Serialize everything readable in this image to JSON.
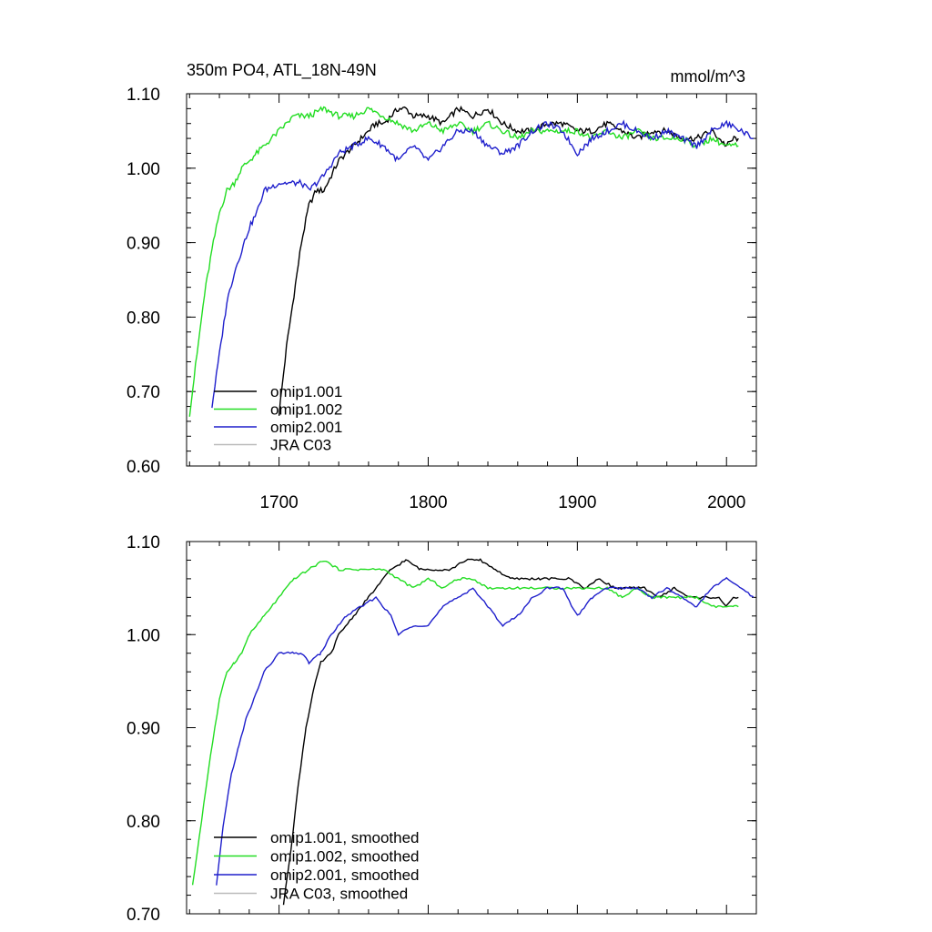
{
  "chart_data": [
    {
      "type": "line",
      "title": "350m PO4, ATL_18N-49N",
      "units": "mmol/m^3",
      "xlabel": "",
      "ylabel": "",
      "xlim": [
        1638,
        2020
      ],
      "ylim": [
        0.6,
        1.1
      ],
      "xticks": [
        1700,
        1800,
        1900,
        2000
      ],
      "yticks": [
        0.6,
        0.7,
        0.8,
        0.9,
        1.0,
        1.1
      ],
      "ytick_labels": [
        "0.60",
        "0.70",
        "0.80",
        "0.90",
        "1.00",
        "1.10"
      ],
      "legend_position": "bottom-left",
      "series": [
        {
          "name": "omip1.001",
          "color": "#000000",
          "points": [
            [
              1700,
              0.67
            ],
            [
              1705,
              0.76
            ],
            [
              1710,
              0.83
            ],
            [
              1715,
              0.9
            ],
            [
              1720,
              0.95
            ],
            [
              1725,
              0.97
            ],
            [
              1730,
              0.97
            ],
            [
              1735,
              0.99
            ],
            [
              1740,
              1.01
            ],
            [
              1745,
              1.02
            ],
            [
              1750,
              1.03
            ],
            [
              1755,
              1.04
            ],
            [
              1760,
              1.05
            ],
            [
              1765,
              1.06
            ],
            [
              1770,
              1.06
            ],
            [
              1775,
              1.07
            ],
            [
              1780,
              1.08
            ],
            [
              1785,
              1.08
            ],
            [
              1790,
              1.07
            ],
            [
              1800,
              1.07
            ],
            [
              1810,
              1.06
            ],
            [
              1820,
              1.08
            ],
            [
              1830,
              1.07
            ],
            [
              1840,
              1.08
            ],
            [
              1850,
              1.06
            ],
            [
              1860,
              1.05
            ],
            [
              1870,
              1.05
            ],
            [
              1880,
              1.06
            ],
            [
              1890,
              1.06
            ],
            [
              1900,
              1.05
            ],
            [
              1910,
              1.05
            ],
            [
              1920,
              1.06
            ],
            [
              1930,
              1.05
            ],
            [
              1940,
              1.04
            ],
            [
              1950,
              1.05
            ],
            [
              1960,
              1.05
            ],
            [
              1970,
              1.04
            ],
            [
              1980,
              1.04
            ],
            [
              1990,
              1.05
            ],
            [
              2000,
              1.03
            ],
            [
              2005,
              1.04
            ],
            [
              2008,
              1.04
            ]
          ]
        },
        {
          "name": "omip1.002",
          "color": "#22dd22",
          "points": [
            [
              1640,
              0.67
            ],
            [
              1645,
              0.75
            ],
            [
              1650,
              0.83
            ],
            [
              1655,
              0.89
            ],
            [
              1660,
              0.94
            ],
            [
              1665,
              0.97
            ],
            [
              1670,
              0.98
            ],
            [
              1675,
              1.0
            ],
            [
              1680,
              1.01
            ],
            [
              1690,
              1.03
            ],
            [
              1700,
              1.05
            ],
            [
              1710,
              1.07
            ],
            [
              1720,
              1.07
            ],
            [
              1730,
              1.08
            ],
            [
              1740,
              1.07
            ],
            [
              1750,
              1.07
            ],
            [
              1760,
              1.08
            ],
            [
              1770,
              1.07
            ],
            [
              1780,
              1.06
            ],
            [
              1790,
              1.05
            ],
            [
              1800,
              1.06
            ],
            [
              1810,
              1.05
            ],
            [
              1820,
              1.06
            ],
            [
              1830,
              1.05
            ],
            [
              1840,
              1.06
            ],
            [
              1850,
              1.05
            ],
            [
              1860,
              1.04
            ],
            [
              1870,
              1.05
            ],
            [
              1880,
              1.05
            ],
            [
              1890,
              1.05
            ],
            [
              1900,
              1.05
            ],
            [
              1910,
              1.04
            ],
            [
              1920,
              1.05
            ],
            [
              1930,
              1.04
            ],
            [
              1940,
              1.05
            ],
            [
              1950,
              1.04
            ],
            [
              1960,
              1.04
            ],
            [
              1970,
              1.04
            ],
            [
              1980,
              1.03
            ],
            [
              1990,
              1.04
            ],
            [
              2000,
              1.03
            ],
            [
              2005,
              1.03
            ],
            [
              2008,
              1.03
            ]
          ]
        },
        {
          "name": "omip2.001",
          "color": "#1f1fcc",
          "points": [
            [
              1655,
              0.68
            ],
            [
              1660,
              0.75
            ],
            [
              1665,
              0.82
            ],
            [
              1670,
              0.86
            ],
            [
              1675,
              0.89
            ],
            [
              1680,
              0.92
            ],
            [
              1685,
              0.94
            ],
            [
              1690,
              0.97
            ],
            [
              1700,
              0.98
            ],
            [
              1710,
              0.98
            ],
            [
              1715,
              0.98
            ],
            [
              1720,
              0.97
            ],
            [
              1725,
              0.98
            ],
            [
              1730,
              0.99
            ],
            [
              1740,
              1.02
            ],
            [
              1750,
              1.03
            ],
            [
              1760,
              1.04
            ],
            [
              1770,
              1.03
            ],
            [
              1775,
              1.02
            ],
            [
              1780,
              1.01
            ],
            [
              1785,
              1.02
            ],
            [
              1790,
              1.03
            ],
            [
              1800,
              1.01
            ],
            [
              1810,
              1.03
            ],
            [
              1820,
              1.05
            ],
            [
              1830,
              1.05
            ],
            [
              1840,
              1.03
            ],
            [
              1850,
              1.02
            ],
            [
              1860,
              1.03
            ],
            [
              1870,
              1.05
            ],
            [
              1880,
              1.06
            ],
            [
              1890,
              1.05
            ],
            [
              1900,
              1.02
            ],
            [
              1910,
              1.04
            ],
            [
              1920,
              1.05
            ],
            [
              1930,
              1.06
            ],
            [
              1940,
              1.05
            ],
            [
              1950,
              1.04
            ],
            [
              1960,
              1.05
            ],
            [
              1970,
              1.04
            ],
            [
              1980,
              1.03
            ],
            [
              1990,
              1.05
            ],
            [
              2000,
              1.06
            ],
            [
              2010,
              1.05
            ],
            [
              2018,
              1.04
            ]
          ]
        },
        {
          "name": "JRA C03",
          "color": "#bbbbbb",
          "points": []
        }
      ]
    },
    {
      "type": "line",
      "title": "",
      "xlabel": "",
      "ylabel": "",
      "xlim": [
        1638,
        2020
      ],
      "ylim": [
        0.7,
        1.1
      ],
      "xticks": [
        1700,
        1800,
        1900,
        2000
      ],
      "yticks": [
        0.7,
        0.8,
        0.9,
        1.0,
        1.1
      ],
      "ytick_labels": [
        "0.70",
        "0.80",
        "0.90",
        "1.00",
        "1.10"
      ],
      "legend_position": "bottom-left",
      "series": [
        {
          "name": "omip1.001, smoothed",
          "color": "#000000",
          "points": [
            [
              1703,
              0.71
            ],
            [
              1708,
              0.77
            ],
            [
              1713,
              0.84
            ],
            [
              1718,
              0.9
            ],
            [
              1723,
              0.94
            ],
            [
              1728,
              0.97
            ],
            [
              1735,
              0.98
            ],
            [
              1740,
              1.0
            ],
            [
              1750,
              1.02
            ],
            [
              1760,
              1.04
            ],
            [
              1770,
              1.06
            ],
            [
              1775,
              1.07
            ],
            [
              1785,
              1.08
            ],
            [
              1795,
              1.07
            ],
            [
              1805,
              1.07
            ],
            [
              1815,
              1.07
            ],
            [
              1825,
              1.08
            ],
            [
              1835,
              1.08
            ],
            [
              1845,
              1.07
            ],
            [
              1855,
              1.06
            ],
            [
              1865,
              1.06
            ],
            [
              1875,
              1.06
            ],
            [
              1885,
              1.06
            ],
            [
              1895,
              1.06
            ],
            [
              1905,
              1.05
            ],
            [
              1915,
              1.06
            ],
            [
              1925,
              1.05
            ],
            [
              1935,
              1.05
            ],
            [
              1945,
              1.05
            ],
            [
              1955,
              1.04
            ],
            [
              1965,
              1.05
            ],
            [
              1975,
              1.04
            ],
            [
              1985,
              1.04
            ],
            [
              1995,
              1.04
            ],
            [
              2000,
              1.03
            ],
            [
              2005,
              1.04
            ],
            [
              2008,
              1.04
            ]
          ]
        },
        {
          "name": "omip1.002, smoothed",
          "color": "#22dd22",
          "points": [
            [
              1642,
              0.73
            ],
            [
              1648,
              0.8
            ],
            [
              1654,
              0.87
            ],
            [
              1660,
              0.93
            ],
            [
              1665,
              0.96
            ],
            [
              1670,
              0.97
            ],
            [
              1675,
              0.98
            ],
            [
              1680,
              1.0
            ],
            [
              1690,
              1.02
            ],
            [
              1700,
              1.04
            ],
            [
              1710,
              1.06
            ],
            [
              1720,
              1.07
            ],
            [
              1730,
              1.08
            ],
            [
              1740,
              1.07
            ],
            [
              1750,
              1.07
            ],
            [
              1760,
              1.07
            ],
            [
              1770,
              1.07
            ],
            [
              1780,
              1.06
            ],
            [
              1790,
              1.05
            ],
            [
              1800,
              1.06
            ],
            [
              1810,
              1.05
            ],
            [
              1820,
              1.06
            ],
            [
              1830,
              1.06
            ],
            [
              1840,
              1.05
            ],
            [
              1850,
              1.05
            ],
            [
              1860,
              1.05
            ],
            [
              1870,
              1.05
            ],
            [
              1880,
              1.05
            ],
            [
              1890,
              1.05
            ],
            [
              1900,
              1.05
            ],
            [
              1910,
              1.05
            ],
            [
              1920,
              1.05
            ],
            [
              1930,
              1.04
            ],
            [
              1940,
              1.05
            ],
            [
              1950,
              1.04
            ],
            [
              1960,
              1.04
            ],
            [
              1970,
              1.04
            ],
            [
              1980,
              1.04
            ],
            [
              1990,
              1.03
            ],
            [
              2000,
              1.03
            ],
            [
              2005,
              1.03
            ],
            [
              2008,
              1.03
            ]
          ]
        },
        {
          "name": "omip2.001, smoothed",
          "color": "#1f1fcc",
          "points": [
            [
              1658,
              0.73
            ],
            [
              1663,
              0.8
            ],
            [
              1668,
              0.85
            ],
            [
              1673,
              0.88
            ],
            [
              1678,
              0.91
            ],
            [
              1683,
              0.93
            ],
            [
              1690,
              0.96
            ],
            [
              1700,
              0.98
            ],
            [
              1710,
              0.98
            ],
            [
              1715,
              0.98
            ],
            [
              1720,
              0.97
            ],
            [
              1728,
              0.98
            ],
            [
              1735,
              1.0
            ],
            [
              1745,
              1.02
            ],
            [
              1755,
              1.03
            ],
            [
              1765,
              1.04
            ],
            [
              1775,
              1.02
            ],
            [
              1780,
              1.0
            ],
            [
              1790,
              1.01
            ],
            [
              1800,
              1.01
            ],
            [
              1810,
              1.03
            ],
            [
              1820,
              1.04
            ],
            [
              1830,
              1.05
            ],
            [
              1840,
              1.03
            ],
            [
              1850,
              1.01
            ],
            [
              1860,
              1.02
            ],
            [
              1870,
              1.04
            ],
            [
              1880,
              1.05
            ],
            [
              1890,
              1.05
            ],
            [
              1900,
              1.02
            ],
            [
              1910,
              1.04
            ],
            [
              1920,
              1.05
            ],
            [
              1930,
              1.05
            ],
            [
              1940,
              1.05
            ],
            [
              1950,
              1.04
            ],
            [
              1960,
              1.05
            ],
            [
              1970,
              1.04
            ],
            [
              1980,
              1.03
            ],
            [
              1990,
              1.05
            ],
            [
              2000,
              1.06
            ],
            [
              2010,
              1.05
            ],
            [
              2018,
              1.04
            ]
          ]
        },
        {
          "name": "JRA C03, smoothed",
          "color": "#bbbbbb",
          "points": []
        }
      ]
    }
  ]
}
